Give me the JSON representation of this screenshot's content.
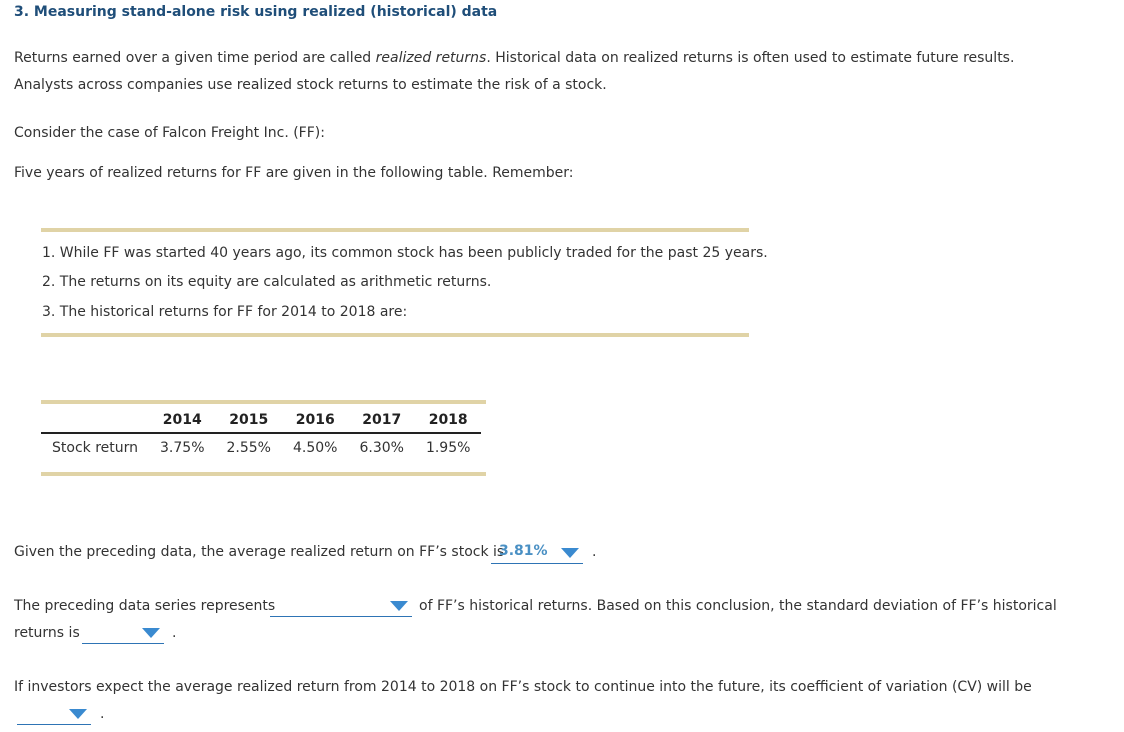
{
  "title": "3. Measuring stand-alone risk using realized (historical) data",
  "intro": {
    "line1_before": "Returns earned over a given time period are called ",
    "line1_italic": "realized returns",
    "line1_after": ". Historical data on realized returns is often used to estimate future results.",
    "line2": "Analysts across companies use realized stock returns to estimate the risk of a stock."
  },
  "case_line": "Consider the case of Falcon Freight Inc. (FF):",
  "five_years_line": "Five years of realized returns for FF are given in the following table. Remember:",
  "remember_list": [
    "1. While FF was started 40 years ago, its common stock has been publicly traded for the past 25 years.",
    "2. The returns on its equity are calculated as arithmetic returns.",
    "3. The historical returns for FF for 2014 to 2018 are:"
  ],
  "table": {
    "corner": "",
    "headers": [
      "2014",
      "2015",
      "2016",
      "2017",
      "2018"
    ],
    "row_label": "Stock return",
    "values": [
      "3.75%",
      "2.55%",
      "4.50%",
      "6.30%",
      "1.95%"
    ]
  },
  "q1": {
    "before": "Given the preceding data, the average realized return on FF’s stock is",
    "selected": "3.81%",
    "after": "."
  },
  "q2": {
    "before": "The preceding data series represents",
    "selected1": "",
    "after1": "of FF’s historical returns. Based on this conclusion, the standard deviation of FF’s historical",
    "line2_before": "returns is",
    "selected2": "",
    "after2": "."
  },
  "q3": {
    "text": "If investors expect the average realized return from 2014 to 2018 on FF’s stock to continue into the future, its coefficient of variation (CV) will be",
    "selected": "",
    "after": "."
  },
  "colors": {
    "title": "#1f4e79",
    "rule": "#e0d3a6",
    "dropdown_accent": "#3a8ad0"
  }
}
